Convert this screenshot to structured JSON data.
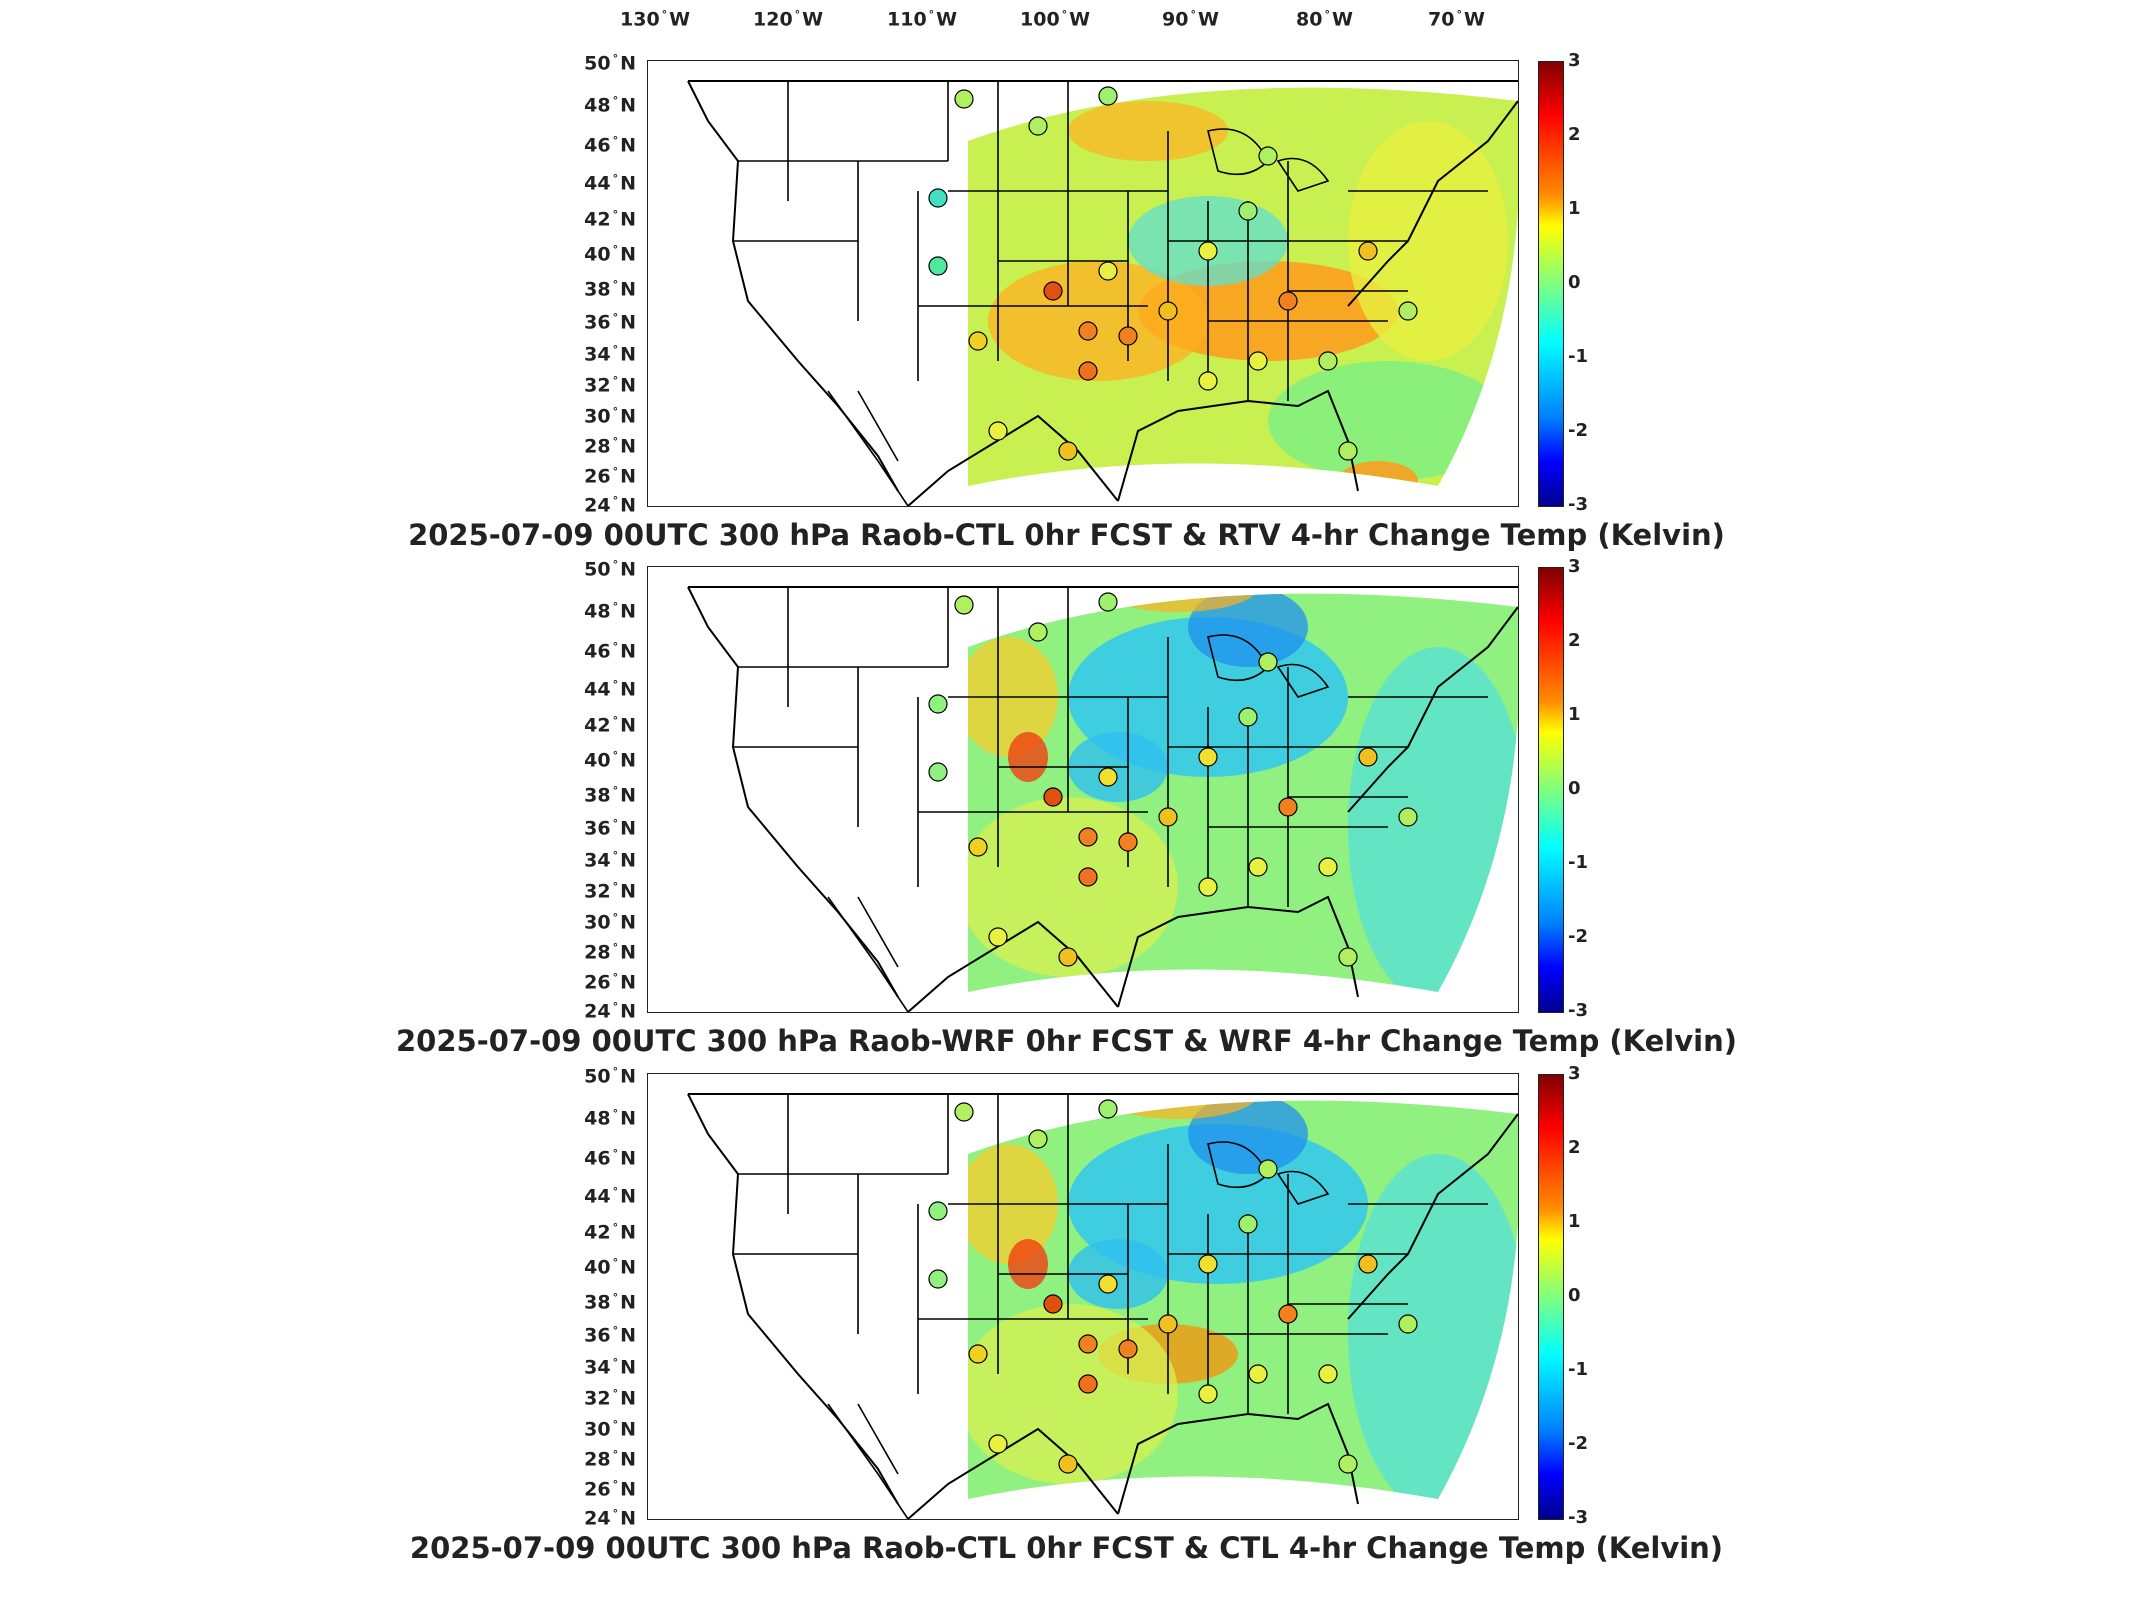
{
  "longitude_labels": [
    {
      "deg": "130",
      "hem": "W"
    },
    {
      "deg": "120",
      "hem": "W"
    },
    {
      "deg": "110",
      "hem": "W"
    },
    {
      "deg": "100",
      "hem": "W"
    },
    {
      "deg": "90",
      "hem": "W"
    },
    {
      "deg": "80",
      "hem": "W"
    },
    {
      "deg": "70",
      "hem": "W"
    }
  ],
  "latitude_labels": [
    {
      "deg": "50",
      "hem": "N"
    },
    {
      "deg": "48",
      "hem": "N"
    },
    {
      "deg": "46",
      "hem": "N"
    },
    {
      "deg": "44",
      "hem": "N"
    },
    {
      "deg": "42",
      "hem": "N"
    },
    {
      "deg": "40",
      "hem": "N"
    },
    {
      "deg": "38",
      "hem": "N"
    },
    {
      "deg": "36",
      "hem": "N"
    },
    {
      "deg": "34",
      "hem": "N"
    },
    {
      "deg": "32",
      "hem": "N"
    },
    {
      "deg": "30",
      "hem": "N"
    },
    {
      "deg": "28",
      "hem": "N"
    },
    {
      "deg": "26",
      "hem": "N"
    },
    {
      "deg": "24",
      "hem": "N"
    }
  ],
  "colorbar": {
    "ticks": [
      "3",
      "2",
      "1",
      "0",
      "-1",
      "-2",
      "-3"
    ],
    "min": -3,
    "max": 3,
    "colormap": "jet"
  },
  "colors": {
    "dark_red": "#800000",
    "red": "#ff0000",
    "orange": "#ff8c00",
    "yellow": "#ffff00",
    "green": "#7fff7f",
    "cyan": "#00ffff",
    "blue": "#0000ff",
    "dark_blue": "#00008f"
  },
  "panels": [
    {
      "title": "2025-07-09 00UTC 300 hPa Raob-CTL 0hr FCST & RTV 4-hr Change Temp (Kelvin)"
    },
    {
      "title": "2025-07-09 00UTC 300 hPa Raob-WRF 0hr FCST & WRF 4-hr Change Temp (Kelvin)"
    },
    {
      "title": "2025-07-09 00UTC 300 hPa Raob-CTL 0hr FCST & CTL 4-hr Change Temp (Kelvin)"
    }
  ]
}
